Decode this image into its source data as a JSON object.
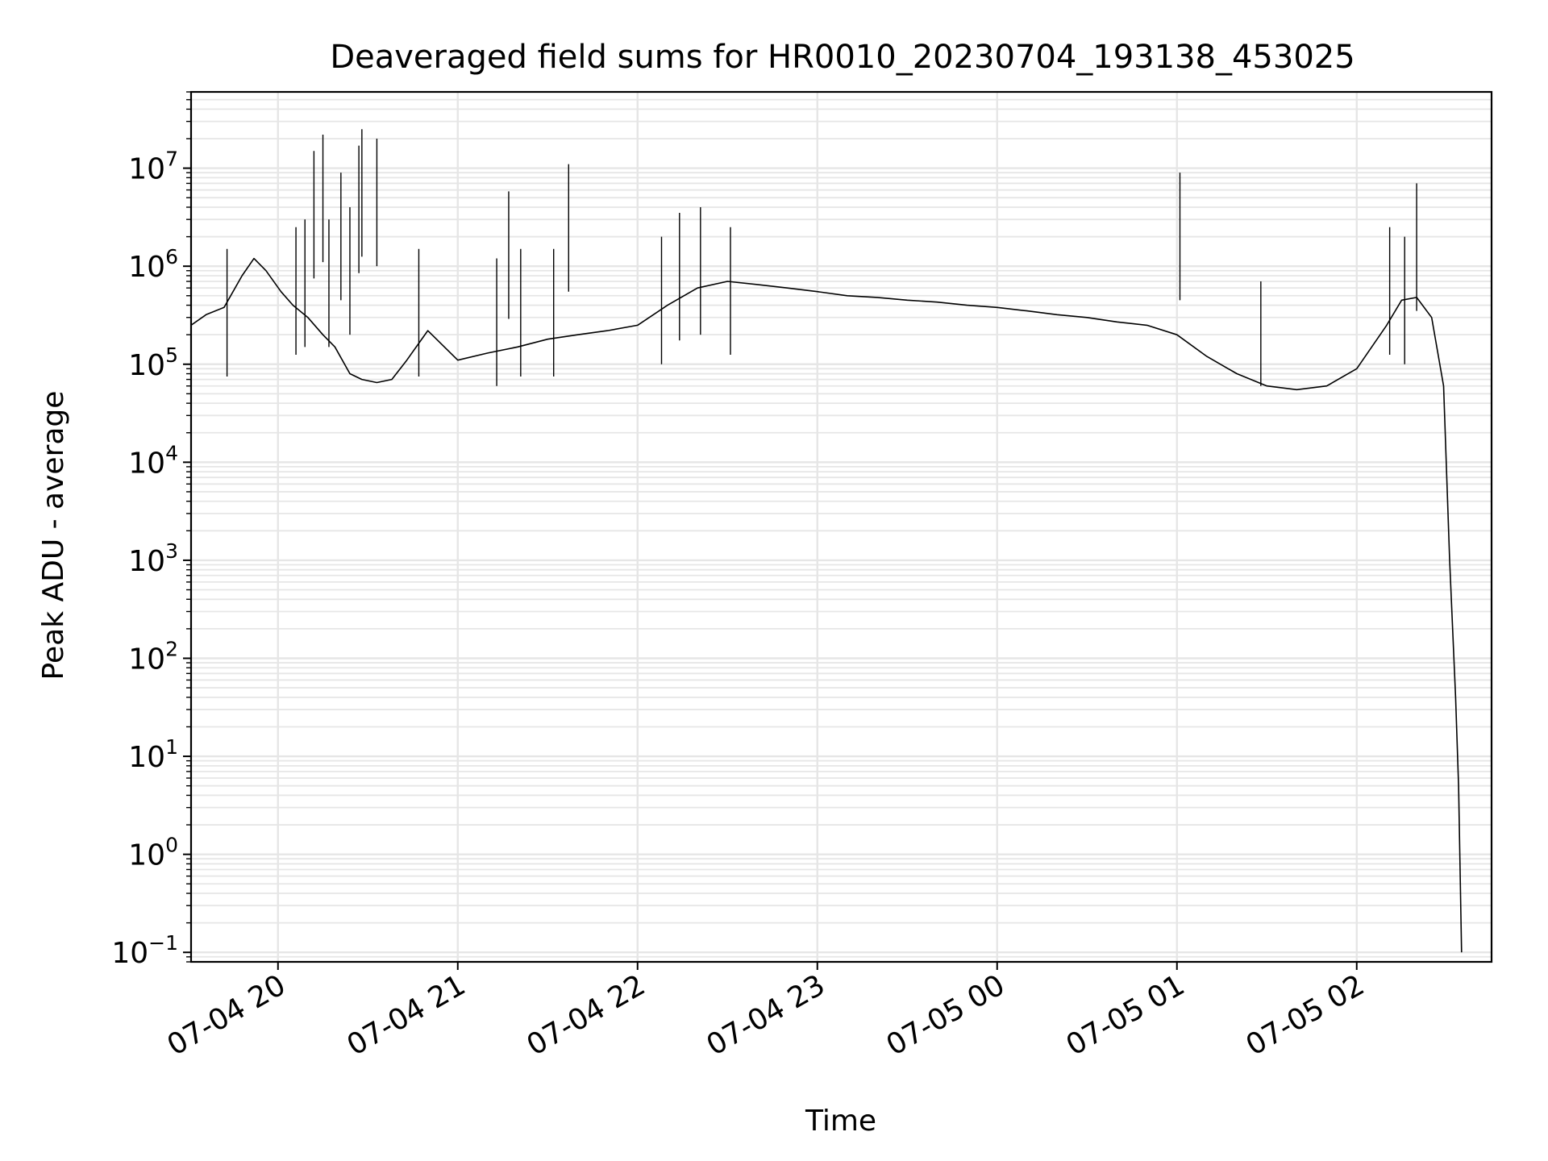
{
  "chart_data": {
    "type": "line",
    "title": "Deaveraged field sums for HR0010_20230704_193138_453025",
    "xlabel": "Time",
    "ylabel": "Peak ADU - average",
    "y_scale": "log",
    "ylim": [
      0.08,
      60000000
    ],
    "xlim": [
      "2023-07-04 19:31",
      "2023-07-05 02:45"
    ],
    "x_ticks": [
      "2023-07-04 20:00",
      "2023-07-04 21:00",
      "2023-07-04 22:00",
      "2023-07-04 23:00",
      "2023-07-05 00:00",
      "2023-07-05 01:00",
      "2023-07-05 02:00"
    ],
    "x_tick_labels": [
      "07-04 20",
      "07-04 21",
      "07-04 22",
      "07-04 23",
      "07-05 00",
      "07-05 01",
      "07-05 02"
    ],
    "y_ticks": [
      0.1,
      1,
      10,
      100,
      1000,
      10000,
      100000,
      1000000,
      10000000
    ],
    "y_tick_labels": [
      {
        "base": "10",
        "exp": "−1"
      },
      {
        "base": "10",
        "exp": "0"
      },
      {
        "base": "10",
        "exp": "1"
      },
      {
        "base": "10",
        "exp": "2"
      },
      {
        "base": "10",
        "exp": "3"
      },
      {
        "base": "10",
        "exp": "4"
      },
      {
        "base": "10",
        "exp": "5"
      },
      {
        "base": "10",
        "exp": "6"
      },
      {
        "base": "10",
        "exp": "7"
      }
    ],
    "grid": true,
    "line_color": "#000000",
    "grid_color": "#e6e6e6",
    "series": [
      {
        "x": [
          "2023-07-04 19:31",
          "2023-07-04 19:36",
          "2023-07-04 19:42",
          "2023-07-04 19:48",
          "2023-07-04 19:52",
          "2023-07-04 19:56",
          "2023-07-04 20:01",
          "2023-07-04 20:05",
          "2023-07-04 20:10",
          "2023-07-04 20:15",
          "2023-07-04 20:19",
          "2023-07-04 20:24",
          "2023-07-04 20:28",
          "2023-07-04 20:33",
          "2023-07-04 20:38",
          "2023-07-04 20:43",
          "2023-07-04 20:50",
          "2023-07-04 21:00",
          "2023-07-04 21:10",
          "2023-07-04 21:20",
          "2023-07-04 21:30",
          "2023-07-04 21:40",
          "2023-07-04 21:50",
          "2023-07-04 22:00",
          "2023-07-04 22:10",
          "2023-07-04 22:20",
          "2023-07-04 22:30",
          "2023-07-04 22:40",
          "2023-07-04 22:50",
          "2023-07-04 23:00",
          "2023-07-04 23:10",
          "2023-07-04 23:20",
          "2023-07-04 23:30",
          "2023-07-04 23:40",
          "2023-07-04 23:50",
          "2023-07-05 00:00",
          "2023-07-05 00:10",
          "2023-07-05 00:20",
          "2023-07-05 00:30",
          "2023-07-05 00:40",
          "2023-07-05 00:50",
          "2023-07-05 01:00",
          "2023-07-05 01:10",
          "2023-07-05 01:20",
          "2023-07-05 01:30",
          "2023-07-05 01:40",
          "2023-07-05 01:50",
          "2023-07-05 02:00",
          "2023-07-05 02:10",
          "2023-07-05 02:15",
          "2023-07-05 02:20",
          "2023-07-05 02:25",
          "2023-07-05 02:29",
          "2023-07-05 02:31",
          "2023-07-05 02:33",
          "2023-07-05 02:34",
          "2023-07-05 02:35"
        ],
        "y": [
          250000,
          320000,
          380000,
          800000,
          1200000,
          900000,
          550000,
          400000,
          300000,
          200000,
          150000,
          80000,
          70000,
          65000,
          70000,
          110000,
          220000,
          110000,
          130000,
          150000,
          180000,
          200000,
          220000,
          250000,
          400000,
          600000,
          700000,
          650000,
          600000,
          550000,
          500000,
          480000,
          450000,
          430000,
          400000,
          380000,
          350000,
          320000,
          300000,
          270000,
          250000,
          200000,
          120000,
          80000,
          60000,
          55000,
          60000,
          90000,
          250000,
          450000,
          480000,
          300000,
          60000,
          1000,
          40,
          5,
          0.1
        ]
      }
    ],
    "spikes": [
      {
        "x": "2023-07-04 19:43",
        "y": 1500000
      },
      {
        "x": "2023-07-04 20:06",
        "y": 2500000
      },
      {
        "x": "2023-07-04 20:09",
        "y": 3000000
      },
      {
        "x": "2023-07-04 20:12",
        "y": 15000000
      },
      {
        "x": "2023-07-04 20:15",
        "y": 22000000
      },
      {
        "x": "2023-07-04 20:17",
        "y": 3000000
      },
      {
        "x": "2023-07-04 20:21",
        "y": 9000000
      },
      {
        "x": "2023-07-04 20:24",
        "y": 4000000
      },
      {
        "x": "2023-07-04 20:27",
        "y": 17000000
      },
      {
        "x": "2023-07-04 20:28",
        "y": 25000000
      },
      {
        "x": "2023-07-04 20:33",
        "y": 20000000
      },
      {
        "x": "2023-07-04 20:47",
        "y": 1500000
      },
      {
        "x": "2023-07-04 21:13",
        "y": 1200000
      },
      {
        "x": "2023-07-04 21:17",
        "y": 5800000
      },
      {
        "x": "2023-07-04 21:21",
        "y": 1500000
      },
      {
        "x": "2023-07-04 21:32",
        "y": 1500000
      },
      {
        "x": "2023-07-04 21:37",
        "y": 11000000
      },
      {
        "x": "2023-07-04 22:08",
        "y": 2000000
      },
      {
        "x": "2023-07-04 22:14",
        "y": 3500000
      },
      {
        "x": "2023-07-04 22:21",
        "y": 4000000
      },
      {
        "x": "2023-07-04 22:31",
        "y": 2500000
      },
      {
        "x": "2023-07-05 01:01",
        "y": 9000000
      },
      {
        "x": "2023-07-05 01:28",
        "y": 700000
      },
      {
        "x": "2023-07-05 02:11",
        "y": 2500000
      },
      {
        "x": "2023-07-05 02:16",
        "y": 2000000
      },
      {
        "x": "2023-07-05 02:20",
        "y": 7000000
      }
    ]
  }
}
